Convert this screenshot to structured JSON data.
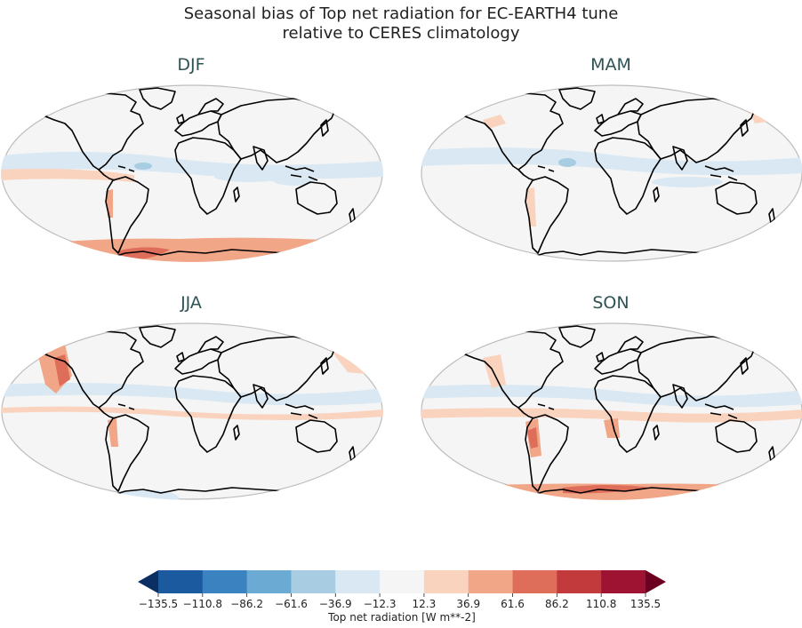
{
  "title_line1": "Seasonal bias of Top net radiation for EC-EARTH4 tune",
  "title_line2": "relative to CERES climatology",
  "panels": [
    {
      "label": "DJF"
    },
    {
      "label": "MAM"
    },
    {
      "label": "JJA"
    },
    {
      "label": "SON"
    }
  ],
  "colorbar": {
    "label": "Top net radiation [W m**-2]",
    "ticks": [
      "−135.5",
      "−110.8",
      "−86.2",
      "−61.6",
      "−36.9",
      "−12.3",
      "12.3",
      "36.9",
      "61.6",
      "86.2",
      "110.8",
      "135.5"
    ],
    "colors": [
      "#1b5a9e",
      "#3b83c0",
      "#6aaad3",
      "#a8cde3",
      "#d9e8f2",
      "#f5f5f5",
      "#fad3bf",
      "#f1a688",
      "#de6d5a",
      "#c33a3c",
      "#9e1331"
    ],
    "extend_low_color": "#0b2f63",
    "extend_high_color": "#6b0020"
  },
  "colors": {
    "neutral": "#f5f5f5",
    "light_blue": "#d9e8f2",
    "light_red": "#fad3bf",
    "mid_red": "#f1a688",
    "strong_red": "#de6d5a",
    "title_teal": "#2f5255"
  }
}
